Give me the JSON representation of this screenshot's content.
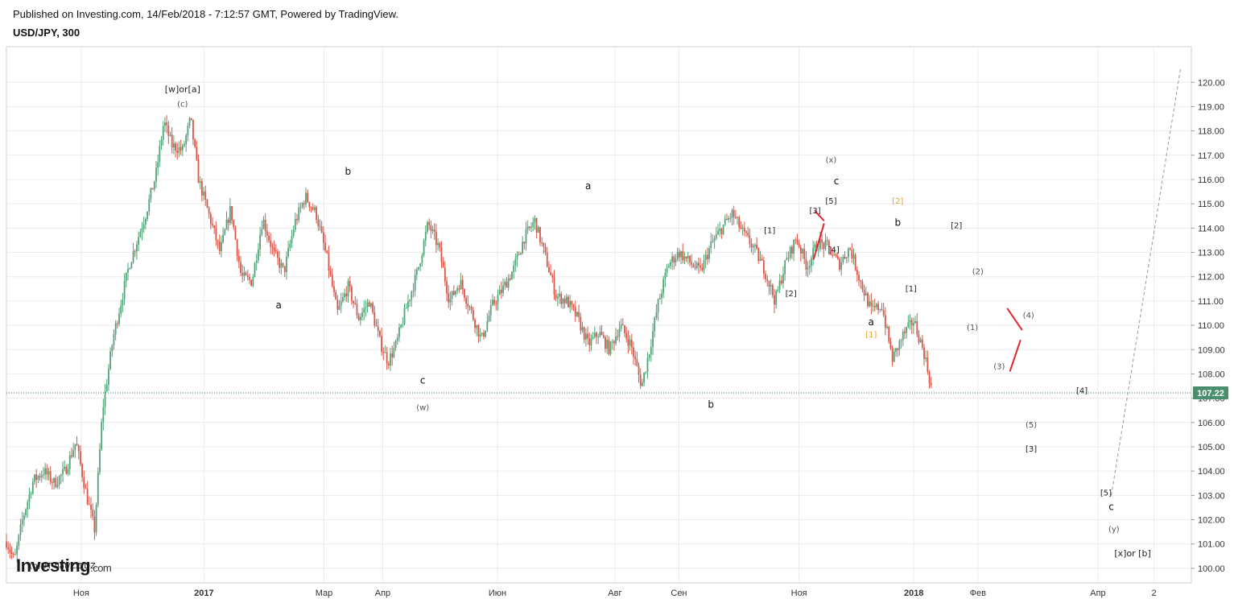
{
  "header": {
    "published": "Published on Investing.com, 14/Feb/2018 - 7:12:57 GMT, Powered by TradingView.",
    "symbol": "USD/JPY, 300"
  },
  "logo": {
    "text": "Investing",
    "suffix": ".com"
  },
  "chart_data": {
    "type": "candlestick",
    "symbol": "USD/JPY",
    "interval": "300",
    "ylim": [
      99.4,
      121.4
    ],
    "grid": true,
    "y_ticks": [
      "100.00",
      "101.00",
      "102.00",
      "103.00",
      "104.00",
      "105.00",
      "106.00",
      "107.00",
      "108.00",
      "109.00",
      "110.00",
      "111.00",
      "112.00",
      "113.00",
      "114.00",
      "115.00",
      "116.00",
      "117.00",
      "118.00",
      "119.00",
      "120.00"
    ],
    "x_ticks": [
      "Ноя",
      "2017",
      "Мар",
      "Апр",
      "Июн",
      "Авг",
      "Сен",
      "Ноя",
      "2018",
      "Фев",
      "Апр",
      "2"
    ],
    "last_price": "107.22",
    "price_path": [
      {
        "t": 0,
        "p": 101.1
      },
      {
        "t": 1.5,
        "p": 100.3
      },
      {
        "t": 3,
        "p": 102.0
      },
      {
        "t": 5,
        "p": 103.6
      },
      {
        "t": 7,
        "p": 104.0
      },
      {
        "t": 9,
        "p": 103.5
      },
      {
        "t": 11,
        "p": 104.0
      },
      {
        "t": 13,
        "p": 105.2
      },
      {
        "t": 15,
        "p": 103.0
      },
      {
        "t": 16.5,
        "p": 101.6
      },
      {
        "t": 18,
        "p": 106.5
      },
      {
        "t": 20,
        "p": 109.5
      },
      {
        "t": 23,
        "p": 112.5
      },
      {
        "t": 26,
        "p": 114.5
      },
      {
        "t": 28,
        "p": 116.2
      },
      {
        "t": 29.5,
        "p": 118.4
      },
      {
        "t": 31,
        "p": 117.4
      },
      {
        "t": 33,
        "p": 117.2
      },
      {
        "t": 34.5,
        "p": 118.5
      },
      {
        "t": 36,
        "p": 116.0
      },
      {
        "t": 38,
        "p": 114.5
      },
      {
        "t": 40,
        "p": 113.0
      },
      {
        "t": 42,
        "p": 114.8
      },
      {
        "t": 44,
        "p": 112.0
      },
      {
        "t": 46,
        "p": 111.8
      },
      {
        "t": 48,
        "p": 114.4
      },
      {
        "t": 50,
        "p": 113.0
      },
      {
        "t": 52,
        "p": 112.2
      },
      {
        "t": 54,
        "p": 114.2
      },
      {
        "t": 56,
        "p": 115.3
      },
      {
        "t": 58,
        "p": 114.6
      },
      {
        "t": 60,
        "p": 112.8
      },
      {
        "t": 62,
        "p": 110.5
      },
      {
        "t": 64,
        "p": 111.6
      },
      {
        "t": 66,
        "p": 110.3
      },
      {
        "t": 68,
        "p": 111.0
      },
      {
        "t": 70,
        "p": 109.3
      },
      {
        "t": 71.5,
        "p": 108.5
      },
      {
        "t": 73,
        "p": 109.2
      },
      {
        "t": 75,
        "p": 110.8
      },
      {
        "t": 77,
        "p": 112.2
      },
      {
        "t": 79,
        "p": 114.2
      },
      {
        "t": 81,
        "p": 113.2
      },
      {
        "t": 83,
        "p": 111.0
      },
      {
        "t": 85,
        "p": 111.8
      },
      {
        "t": 87,
        "p": 110.6
      },
      {
        "t": 89,
        "p": 109.4
      },
      {
        "t": 91,
        "p": 110.8
      },
      {
        "t": 93,
        "p": 111.5
      },
      {
        "t": 95,
        "p": 112.3
      },
      {
        "t": 97,
        "p": 113.6
      },
      {
        "t": 99,
        "p": 114.3
      },
      {
        "t": 101,
        "p": 112.8
      },
      {
        "t": 103,
        "p": 111.2
      },
      {
        "t": 105,
        "p": 111.0
      },
      {
        "t": 107,
        "p": 110.3
      },
      {
        "t": 109,
        "p": 109.2
      },
      {
        "t": 111,
        "p": 109.7
      },
      {
        "t": 113,
        "p": 109.0
      },
      {
        "t": 115,
        "p": 110.0
      },
      {
        "t": 117,
        "p": 109.2
      },
      {
        "t": 119,
        "p": 107.5
      },
      {
        "t": 120.5,
        "p": 109.0
      },
      {
        "t": 122,
        "p": 110.8
      },
      {
        "t": 124,
        "p": 112.5
      },
      {
        "t": 126,
        "p": 113.0
      },
      {
        "t": 128,
        "p": 112.6
      },
      {
        "t": 130,
        "p": 112.2
      },
      {
        "t": 132,
        "p": 113.3
      },
      {
        "t": 134,
        "p": 114.0
      },
      {
        "t": 136,
        "p": 114.6
      },
      {
        "t": 138,
        "p": 113.8
      },
      {
        "t": 140,
        "p": 113.2
      },
      {
        "t": 142,
        "p": 112.3
      },
      {
        "t": 144,
        "p": 111.0
      },
      {
        "t": 146,
        "p": 112.6
      },
      {
        "t": 148,
        "p": 113.6
      },
      {
        "t": 150,
        "p": 112.4
      },
      {
        "t": 152,
        "p": 113.4
      },
      {
        "t": 154,
        "p": 113.2
      },
      {
        "t": 156,
        "p": 112.5
      },
      {
        "t": 158,
        "p": 113.2
      },
      {
        "t": 160,
        "p": 111.8
      },
      {
        "t": 162,
        "p": 110.6
      },
      {
        "t": 164,
        "p": 110.8
      },
      {
        "t": 166,
        "p": 108.6
      },
      {
        "t": 168,
        "p": 109.6
      },
      {
        "t": 170,
        "p": 110.2
      },
      {
        "t": 172,
        "p": 108.8
      },
      {
        "t": 173.5,
        "p": 107.2
      }
    ],
    "projection": [
      {
        "t": 207,
        "p": 103.0
      },
      {
        "t": 220,
        "p": 120.6
      }
    ],
    "annotations": [
      {
        "text": "[w]or[a]",
        "t": 33,
        "p": 119.6,
        "color": "#222",
        "size": 11
      },
      {
        "text": "(c)",
        "t": 33,
        "p": 119.0,
        "color": "#555",
        "size": 10
      },
      {
        "text": "a",
        "t": 51,
        "p": 110.7,
        "color": "#111",
        "size": 12
      },
      {
        "text": "b",
        "t": 64,
        "p": 116.2,
        "color": "#111",
        "size": 12
      },
      {
        "text": "c",
        "t": 78,
        "p": 107.6,
        "color": "#111",
        "size": 12
      },
      {
        "text": "(w)",
        "t": 78,
        "p": 106.5,
        "color": "#555",
        "size": 10
      },
      {
        "text": "a",
        "t": 109,
        "p": 115.6,
        "color": "#111",
        "size": 12
      },
      {
        "text": "b",
        "t": 132,
        "p": 106.6,
        "color": "#111",
        "size": 12
      },
      {
        "text": "[1]",
        "t": 143,
        "p": 113.8,
        "color": "#222",
        "size": 10
      },
      {
        "text": "[2]",
        "t": 147,
        "p": 111.2,
        "color": "#222",
        "size": 10
      },
      {
        "text": "[3]",
        "t": 151.5,
        "p": 114.6,
        "color": "#222",
        "size": 10
      },
      {
        "text": "[4]",
        "t": 155,
        "p": 113.0,
        "color": "#222",
        "size": 10
      },
      {
        "text": "[5]",
        "t": 154.5,
        "p": 115.0,
        "color": "#222",
        "size": 10
      },
      {
        "text": "c",
        "t": 155.5,
        "p": 115.8,
        "color": "#111",
        "size": 12
      },
      {
        "text": "(x)",
        "t": 154.5,
        "p": 116.7,
        "color": "#555",
        "size": 10
      },
      {
        "text": "[2]",
        "t": 167,
        "p": 115.0,
        "color": "#e8a32e",
        "size": 10
      },
      {
        "text": "b",
        "t": 167,
        "p": 114.1,
        "color": "#111",
        "size": 12
      },
      {
        "text": "a",
        "t": 162,
        "p": 110.0,
        "color": "#111",
        "size": 12
      },
      {
        "text": "[1]",
        "t": 162,
        "p": 109.5,
        "color": "#e8a32e",
        "size": 10
      },
      {
        "text": "[1]",
        "t": 169.5,
        "p": 111.4,
        "color": "#222",
        "size": 10
      },
      {
        "text": "[2]",
        "t": 178,
        "p": 114.0,
        "color": "#222",
        "size": 10
      },
      {
        "text": "(2)",
        "t": 182,
        "p": 112.1,
        "color": "#555",
        "size": 10
      },
      {
        "text": "(1)",
        "t": 181,
        "p": 109.8,
        "color": "#555",
        "size": 10
      },
      {
        "text": "(3)",
        "t": 186,
        "p": 108.2,
        "color": "#555",
        "size": 10
      },
      {
        "text": "(4)",
        "t": 191.5,
        "p": 110.3,
        "color": "#555",
        "size": 10
      },
      {
        "text": "[4]",
        "t": 201.5,
        "p": 107.2,
        "color": "#222",
        "size": 10
      },
      {
        "text": "(5)",
        "t": 192,
        "p": 105.8,
        "color": "#555",
        "size": 10
      },
      {
        "text": "[3]",
        "t": 192,
        "p": 104.8,
        "color": "#222",
        "size": 10
      },
      {
        "text": "[5]",
        "t": 206,
        "p": 103.0,
        "color": "#222",
        "size": 10
      },
      {
        "text": "c",
        "t": 207,
        "p": 102.4,
        "color": "#111",
        "size": 12
      },
      {
        "text": "(y)",
        "t": 207.5,
        "p": 101.5,
        "color": "#555",
        "size": 10
      },
      {
        "text": "[x]or [b]",
        "t": 211,
        "p": 100.5,
        "color": "#222",
        "size": 11
      },
      {
        "text": "(b)DT flat/ZZ/DZ",
        "t": 10.5,
        "p": 100.0,
        "color": "#222",
        "size": 10
      }
    ],
    "red_lines": [
      {
        "from": {
          "t": 151.5,
          "p": 114.7
        },
        "to": {
          "t": 153.2,
          "p": 114.3
        }
      },
      {
        "from": {
          "t": 151.2,
          "p": 112.7
        },
        "to": {
          "t": 153.2,
          "p": 114.2
        }
      },
      {
        "from": {
          "t": 187.5,
          "p": 110.7
        },
        "to": {
          "t": 190.3,
          "p": 109.8
        }
      },
      {
        "from": {
          "t": 188.0,
          "p": 108.1
        },
        "to": {
          "t": 190.0,
          "p": 109.4
        }
      }
    ]
  }
}
